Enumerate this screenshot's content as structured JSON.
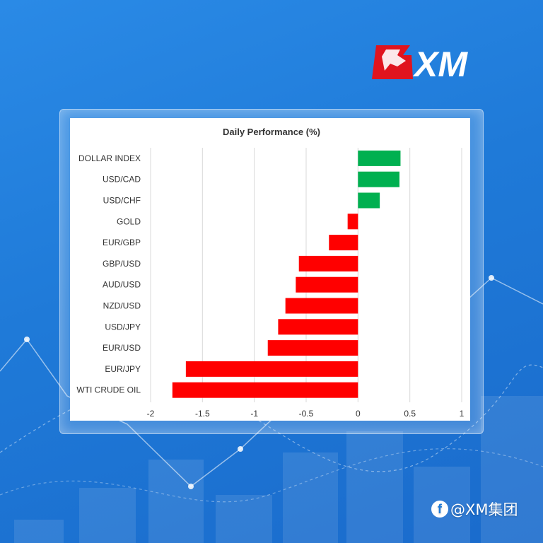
{
  "brand": {
    "logo_text": "XM",
    "accent_red": "#e0141e",
    "bg_blue": "#1f7ad8"
  },
  "watermark": {
    "icon": "facebook-icon",
    "text": "@XM集团"
  },
  "colors": {
    "positive": "#00b050",
    "negative": "#ff0000",
    "grid": "#d9d9d9"
  },
  "chart_data": {
    "type": "bar",
    "orientation": "horizontal",
    "title": "Daily Performance (%)",
    "categories": [
      "DOLLAR INDEX",
      "USD/CAD",
      "USD/CHF",
      "GOLD",
      "EUR/GBP",
      "GBP/USD",
      "AUD/USD",
      "NZD/USD",
      "USD/JPY",
      "EUR/USD",
      "EUR/JPY",
      "WTI CRUDE OIL"
    ],
    "values": [
      0.41,
      0.4,
      0.21,
      -0.1,
      -0.28,
      -0.57,
      -0.6,
      -0.7,
      -0.77,
      -0.87,
      -1.66,
      -1.79
    ],
    "xlim": [
      -2,
      1
    ],
    "xticks": [
      -2,
      -1.5,
      -1,
      -0.5,
      0,
      0.5,
      1
    ],
    "xtick_labels": [
      "-2",
      "-1.5",
      "-1",
      "-0.5",
      "0",
      "0.5",
      "1"
    ],
    "grid": true,
    "legend": "none"
  }
}
